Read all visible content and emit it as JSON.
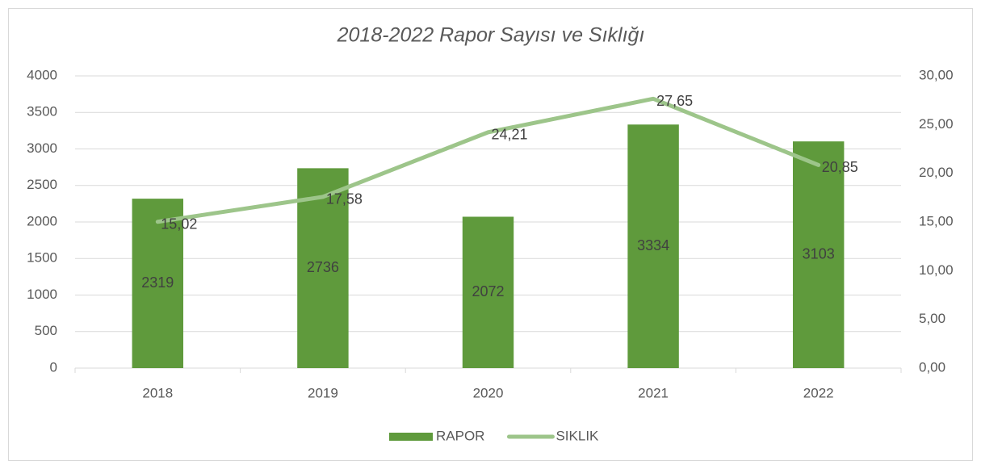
{
  "chart_data": {
    "type": "bar",
    "title": "2018-2022 Rapor Sayısı ve Sıklığı",
    "categories": [
      "2018",
      "2019",
      "2020",
      "2021",
      "2022"
    ],
    "series": [
      {
        "name": "RAPOR",
        "type": "bar",
        "color": "#5f9a3c",
        "values": [
          2319,
          2736,
          2072,
          3334,
          3103
        ]
      },
      {
        "name": "SIKLIK",
        "type": "line",
        "axis": "y2",
        "color": "#9dc58a",
        "values": [
          15.02,
          17.58,
          24.21,
          27.65,
          20.85
        ],
        "value_labels": [
          "15,02",
          "17,58",
          "24,21",
          "27,65",
          "20,85"
        ]
      }
    ],
    "ylim": [
      0,
      4000
    ],
    "yticks": [
      0,
      500,
      1000,
      1500,
      2000,
      2500,
      3000,
      3500,
      4000
    ],
    "y2lim": [
      0,
      30
    ],
    "y2ticks": [
      {
        "value": 0,
        "label": "0,00"
      },
      {
        "value": 5,
        "label": "5,00"
      },
      {
        "value": 10,
        "label": "10,00"
      },
      {
        "value": 15,
        "label": "15,00"
      },
      {
        "value": 20,
        "label": "20,00"
      },
      {
        "value": 25,
        "label": "25,00"
      },
      {
        "value": 30,
        "label": "30,00"
      }
    ],
    "grid": true,
    "legend": "bottom"
  }
}
